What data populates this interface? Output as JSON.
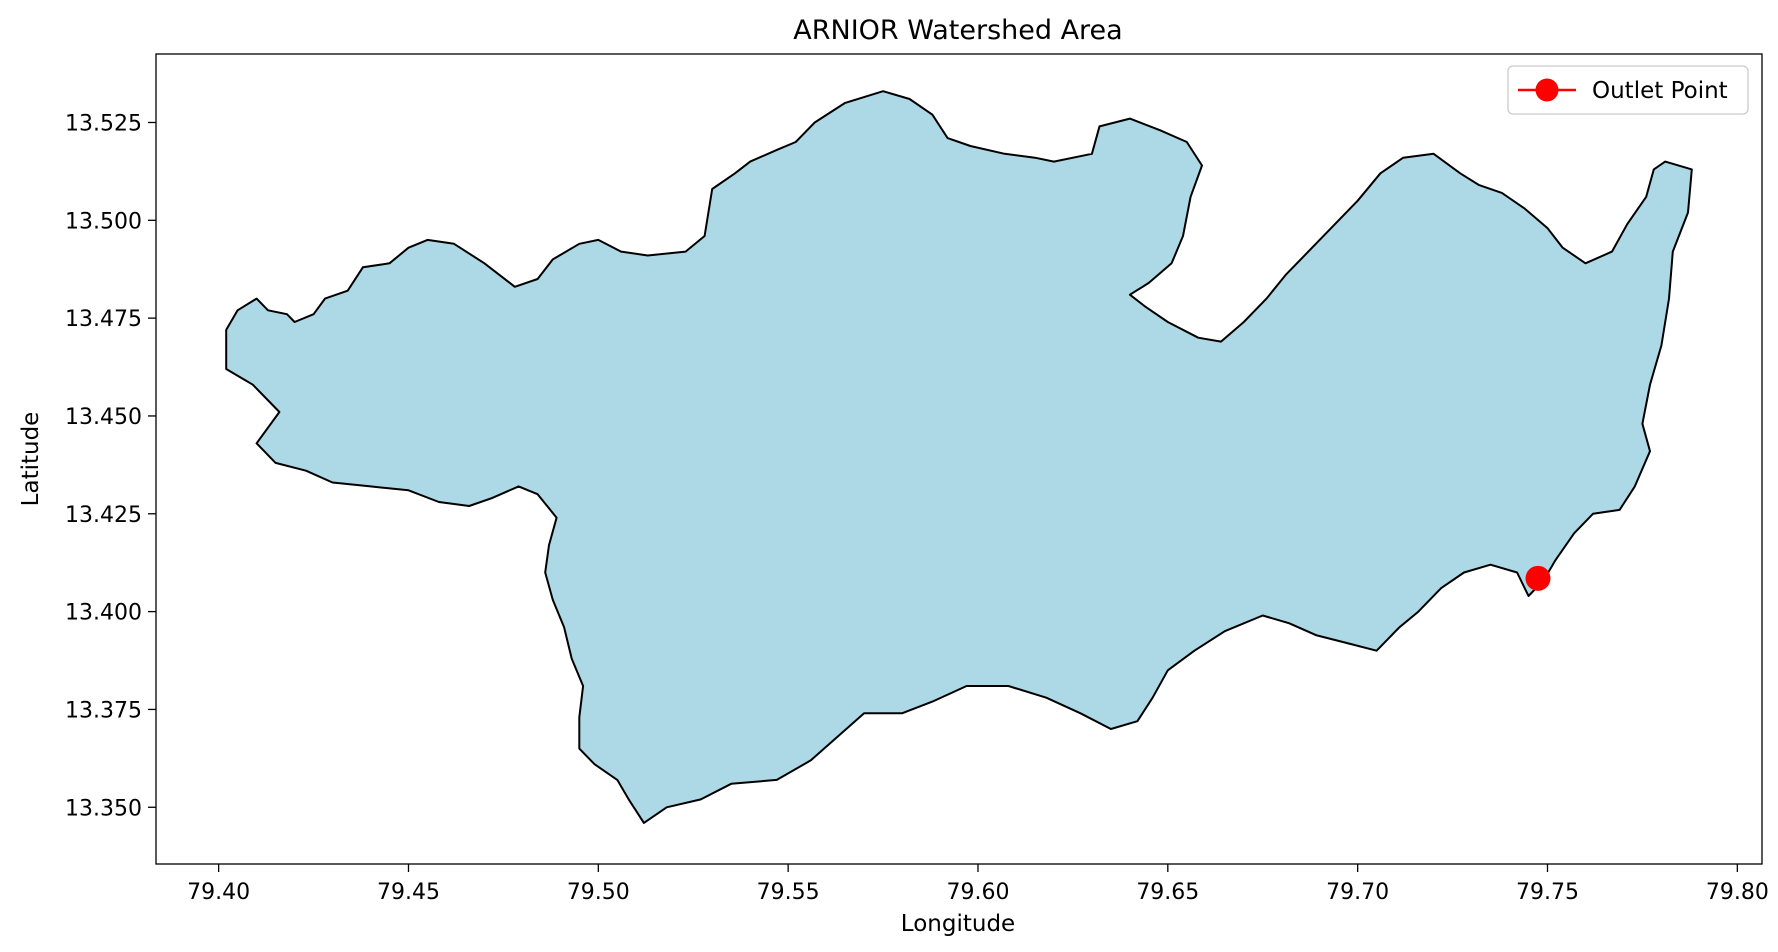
{
  "chart_data": {
    "type": "map",
    "title": "ARNIOR Watershed Area",
    "xlabel": "Longitude",
    "ylabel": "Latitude",
    "xlim": [
      79.3835,
      79.8065
    ],
    "ylim": [
      13.3355,
      13.5425
    ],
    "grid": false,
    "legend_placement": "top-right",
    "x_ticks": [
      "79.40",
      "79.45",
      "79.50",
      "79.55",
      "79.60",
      "79.65",
      "79.70",
      "79.75",
      "79.80"
    ],
    "y_ticks": [
      "13.350",
      "13.375",
      "13.400",
      "13.425",
      "13.450",
      "13.475",
      "13.500",
      "13.525"
    ],
    "colors": {
      "watershed_fill": "#add8e6",
      "watershed_edge": "#000000",
      "outlet": "#ff0000"
    },
    "watershed_polygon": [
      [
        79.402,
        13.472
      ],
      [
        79.405,
        13.477
      ],
      [
        79.41,
        13.48
      ],
      [
        79.413,
        13.477
      ],
      [
        79.418,
        13.476
      ],
      [
        79.42,
        13.474
      ],
      [
        79.425,
        13.476
      ],
      [
        79.428,
        13.48
      ],
      [
        79.434,
        13.482
      ],
      [
        79.438,
        13.488
      ],
      [
        79.445,
        13.489
      ],
      [
        79.45,
        13.493
      ],
      [
        79.455,
        13.495
      ],
      [
        79.462,
        13.494
      ],
      [
        79.47,
        13.489
      ],
      [
        79.478,
        13.483
      ],
      [
        79.484,
        13.485
      ],
      [
        79.488,
        13.49
      ],
      [
        79.495,
        13.494
      ],
      [
        79.5,
        13.495
      ],
      [
        79.506,
        13.492
      ],
      [
        79.513,
        13.491
      ],
      [
        79.523,
        13.492
      ],
      [
        79.528,
        13.496
      ],
      [
        79.529,
        13.502
      ],
      [
        79.53,
        13.508
      ],
      [
        79.536,
        13.512
      ],
      [
        79.54,
        13.515
      ],
      [
        79.547,
        13.518
      ],
      [
        79.552,
        13.52
      ],
      [
        79.557,
        13.525
      ],
      [
        79.565,
        13.53
      ],
      [
        79.575,
        13.533
      ],
      [
        79.582,
        13.531
      ],
      [
        79.588,
        13.527
      ],
      [
        79.592,
        13.521
      ],
      [
        79.598,
        13.519
      ],
      [
        79.607,
        13.517
      ],
      [
        79.615,
        13.516
      ],
      [
        79.62,
        13.515
      ],
      [
        79.63,
        13.517
      ],
      [
        79.632,
        13.524
      ],
      [
        79.64,
        13.526
      ],
      [
        79.648,
        13.523
      ],
      [
        79.655,
        13.52
      ],
      [
        79.659,
        13.514
      ],
      [
        79.656,
        13.506
      ],
      [
        79.654,
        13.496
      ],
      [
        79.651,
        13.489
      ],
      [
        79.645,
        13.484
      ],
      [
        79.64,
        13.481
      ],
      [
        79.644,
        13.478
      ],
      [
        79.65,
        13.474
      ],
      [
        79.658,
        13.47
      ],
      [
        79.664,
        13.469
      ],
      [
        79.67,
        13.474
      ],
      [
        79.676,
        13.48
      ],
      [
        79.681,
        13.486
      ],
      [
        79.688,
        13.493
      ],
      [
        79.694,
        13.499
      ],
      [
        79.7,
        13.505
      ],
      [
        79.706,
        13.512
      ],
      [
        79.712,
        13.516
      ],
      [
        79.72,
        13.517
      ],
      [
        79.727,
        13.512
      ],
      [
        79.732,
        13.509
      ],
      [
        79.738,
        13.507
      ],
      [
        79.744,
        13.503
      ],
      [
        79.75,
        13.498
      ],
      [
        79.754,
        13.493
      ],
      [
        79.76,
        13.489
      ],
      [
        79.767,
        13.492
      ],
      [
        79.771,
        13.499
      ],
      [
        79.776,
        13.506
      ],
      [
        79.778,
        13.513
      ],
      [
        79.781,
        13.515
      ],
      [
        79.788,
        13.513
      ],
      [
        79.787,
        13.502
      ],
      [
        79.783,
        13.492
      ],
      [
        79.782,
        13.48
      ],
      [
        79.78,
        13.468
      ],
      [
        79.777,
        13.458
      ],
      [
        79.775,
        13.448
      ],
      [
        79.777,
        13.441
      ],
      [
        79.773,
        13.432
      ],
      [
        79.769,
        13.426
      ],
      [
        79.762,
        13.425
      ],
      [
        79.757,
        13.42
      ],
      [
        79.752,
        13.413
      ],
      [
        79.749,
        13.408
      ],
      [
        79.745,
        13.404
      ],
      [
        79.742,
        13.41
      ],
      [
        79.735,
        13.412
      ],
      [
        79.728,
        13.41
      ],
      [
        79.722,
        13.406
      ],
      [
        79.716,
        13.4
      ],
      [
        79.711,
        13.396
      ],
      [
        79.705,
        13.39
      ],
      [
        79.697,
        13.392
      ],
      [
        79.689,
        13.394
      ],
      [
        79.682,
        13.397
      ],
      [
        79.675,
        13.399
      ],
      [
        79.665,
        13.395
      ],
      [
        79.657,
        13.39
      ],
      [
        79.65,
        13.385
      ],
      [
        79.646,
        13.378
      ],
      [
        79.642,
        13.372
      ],
      [
        79.635,
        13.37
      ],
      [
        79.627,
        13.374
      ],
      [
        79.618,
        13.378
      ],
      [
        79.608,
        13.381
      ],
      [
        79.597,
        13.381
      ],
      [
        79.588,
        13.377
      ],
      [
        79.58,
        13.374
      ],
      [
        79.57,
        13.374
      ],
      [
        79.563,
        13.368
      ],
      [
        79.556,
        13.362
      ],
      [
        79.547,
        13.357
      ],
      [
        79.535,
        13.356
      ],
      [
        79.527,
        13.352
      ],
      [
        79.518,
        13.35
      ],
      [
        79.512,
        13.346
      ],
      [
        79.508,
        13.352
      ],
      [
        79.505,
        13.357
      ],
      [
        79.499,
        13.361
      ],
      [
        79.495,
        13.365
      ],
      [
        79.495,
        13.373
      ],
      [
        79.496,
        13.381
      ],
      [
        79.493,
        13.388
      ],
      [
        79.491,
        13.396
      ],
      [
        79.488,
        13.403
      ],
      [
        79.486,
        13.41
      ],
      [
        79.487,
        13.417
      ],
      [
        79.489,
        13.424
      ],
      [
        79.484,
        13.43
      ],
      [
        79.479,
        13.432
      ],
      [
        79.472,
        13.429
      ],
      [
        79.466,
        13.427
      ],
      [
        79.458,
        13.428
      ],
      [
        79.45,
        13.431
      ],
      [
        79.44,
        13.432
      ],
      [
        79.43,
        13.433
      ],
      [
        79.423,
        13.436
      ],
      [
        79.415,
        13.438
      ],
      [
        79.41,
        13.443
      ],
      [
        79.416,
        13.451
      ],
      [
        79.409,
        13.458
      ],
      [
        79.402,
        13.462
      ],
      [
        79.402,
        13.468
      ]
    ],
    "outlet_point": {
      "name": "Outlet Point",
      "lon": 79.7475,
      "lat": 13.4085
    }
  }
}
